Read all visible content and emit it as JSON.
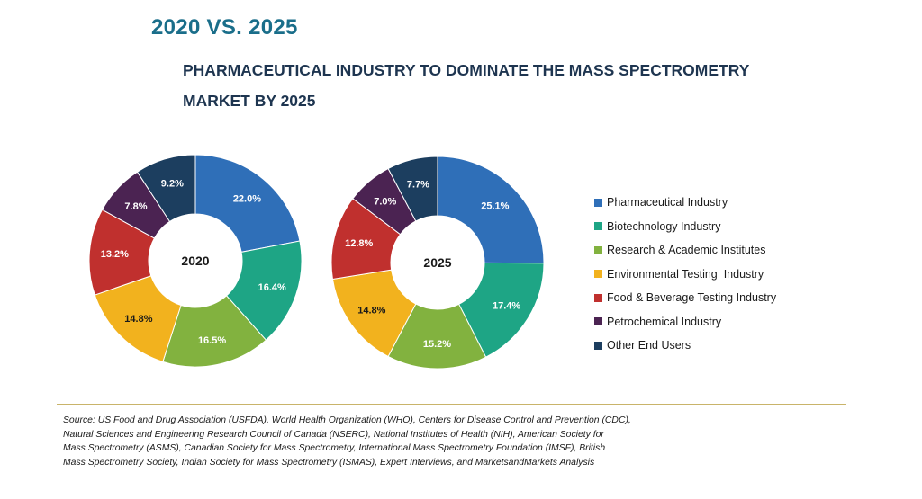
{
  "header": {
    "headline": "2020 VS. 2025",
    "title_line1": "PHARMACEUTICAL INDUSTRY TO DOMINATE THE MASS SPECTROMETRY",
    "title_line2": "MARKET BY 2025"
  },
  "chart_data": [
    {
      "type": "pie",
      "center_label": "2020",
      "categories": [
        "Pharmaceutical Industry",
        "Biotechnology Industry",
        "Research & Academic Institutes",
        "Environmental Testing  Industry",
        "Food & Beverage Testing Industry",
        "Petrochemical Industry",
        "Other End Users"
      ],
      "values": [
        22.0,
        16.4,
        16.5,
        14.8,
        13.2,
        7.8,
        9.2
      ],
      "labels": [
        "22.0%",
        "16.4%",
        "16.5%",
        "14.8%",
        "13.2%",
        "7.8%",
        "9.2%"
      ],
      "colors": [
        "#2f6fb8",
        "#1ea585",
        "#82b23f",
        "#f2b21e",
        "#c0302e",
        "#4b2352",
        "#1c3e5f"
      ],
      "label_colors": [
        "#ffffff",
        "#ffffff",
        "#ffffff",
        "#1a1a1a",
        "#ffffff",
        "#ffffff",
        "#ffffff"
      ],
      "unit": "%",
      "style": "donut",
      "legend_position": "right"
    },
    {
      "type": "pie",
      "center_label": "2025",
      "categories": [
        "Pharmaceutical Industry",
        "Biotechnology Industry",
        "Research & Academic Institutes",
        "Environmental Testing  Industry",
        "Food & Beverage Testing Industry",
        "Petrochemical Industry",
        "Other End Users"
      ],
      "values": [
        25.1,
        17.4,
        15.2,
        14.8,
        12.8,
        7.0,
        7.7
      ],
      "labels": [
        "25.1%",
        "17.4%",
        "15.2%",
        "14.8%",
        "12.8%",
        "7.0%",
        "7.7%"
      ],
      "colors": [
        "#2f6fb8",
        "#1ea585",
        "#82b23f",
        "#f2b21e",
        "#c0302e",
        "#4b2352",
        "#1c3e5f"
      ],
      "label_colors": [
        "#ffffff",
        "#ffffff",
        "#ffffff",
        "#1a1a1a",
        "#ffffff",
        "#ffffff",
        "#ffffff"
      ],
      "unit": "%",
      "style": "donut",
      "legend_position": "right"
    }
  ],
  "legend": [
    {
      "label": "Pharmaceutical Industry",
      "color": "#2f6fb8"
    },
    {
      "label": "Biotechnology Industry",
      "color": "#1ea585"
    },
    {
      "label": "Research & Academic Institutes",
      "color": "#82b23f"
    },
    {
      "label": "Environmental Testing  Industry",
      "color": "#f2b21e"
    },
    {
      "label": "Food & Beverage Testing Industry",
      "color": "#c0302e"
    },
    {
      "label": "Petrochemical Industry",
      "color": "#4b2352"
    },
    {
      "label": "Other End Users",
      "color": "#1c3e5f"
    }
  ],
  "source": {
    "line1": "Source: US Food and Drug Association (USFDA), World Health Organization (WHO), Centers for Disease Control and Prevention (CDC),",
    "line2": "Natural Sciences and Engineering Research Council of Canada (NSERC), National Institutes of Health (NIH), American Society for",
    "line3": "Mass Spectrometry (ASMS), Canadian Society for Mass Spectrometry, International Mass Spectrometry Foundation (IMSF), British",
    "line4": "Mass Spectrometry Society, Indian Society for Mass Spectrometry (ISMAS), Expert Interviews, and MarketsandMarkets Analysis"
  },
  "colors": {
    "headline": "#1a6e8a",
    "title": "#1e3550",
    "rule": "#c9b46a"
  }
}
